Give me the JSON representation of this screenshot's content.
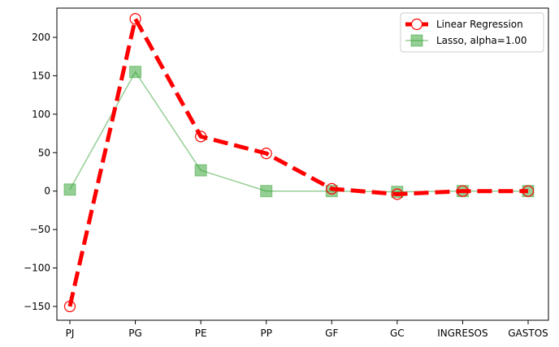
{
  "chart_data": {
    "type": "line",
    "title": "",
    "xlabel": "",
    "ylabel": "",
    "categories": [
      "PJ",
      "PG",
      "PE",
      "PP",
      "GF",
      "GC",
      "INGRESOS",
      "GASTOS"
    ],
    "ylim": [
      -168,
      238
    ],
    "yticks": [
      -150,
      -100,
      -50,
      0,
      50,
      100,
      150,
      200
    ],
    "ytick_labels": [
      "−150",
      "−100",
      "−50",
      "0",
      "50",
      "100",
      "150",
      "200"
    ],
    "grid": false,
    "legend_position": "top-right",
    "series": [
      {
        "name": "Linear Regression",
        "color": "#ff0000",
        "marker": "circle",
        "line_style": "dashed",
        "values": [
          -150,
          224,
          71,
          49,
          3,
          -4,
          0,
          0
        ]
      },
      {
        "name": "Lasso, alpha=1.00",
        "color": "#2ca02c",
        "marker": "square",
        "line_style": "solid",
        "values": [
          2,
          155,
          27,
          0,
          0,
          -1,
          0,
          0
        ]
      }
    ]
  }
}
